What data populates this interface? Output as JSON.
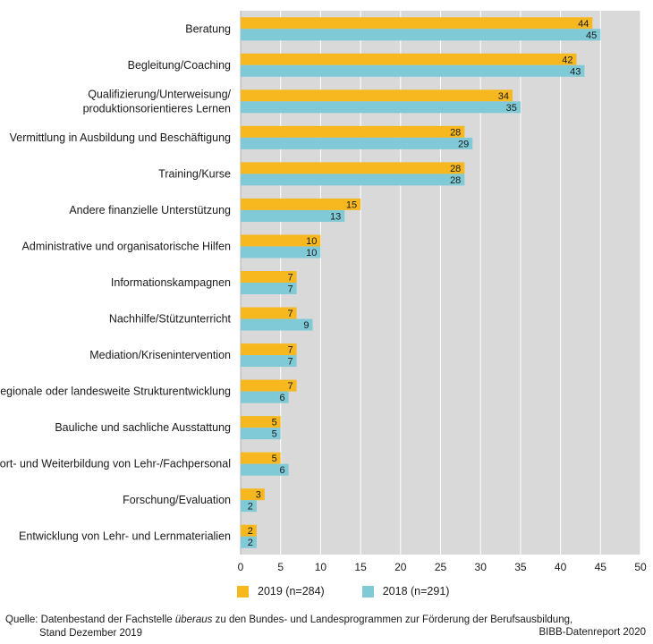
{
  "chart_data": {
    "type": "bar",
    "orientation": "horizontal",
    "categories": [
      [
        "Beratung"
      ],
      [
        "Begleitung/Coaching"
      ],
      [
        "Qualifizierung/Unterweisung/",
        "produktionsorientieres Lernen"
      ],
      [
        "Vermittlung in Ausbildung und Beschäftigung"
      ],
      [
        "Training/Kurse"
      ],
      [
        "Andere finanzielle Unterstützung"
      ],
      [
        "Administrative und organisatorische Hilfen"
      ],
      [
        "Informationskampagnen"
      ],
      [
        "Nachhilfe/Stützunterricht"
      ],
      [
        "Mediation/Krisenintervention"
      ],
      [
        "Regionale oder landesweite Strukturentwicklung"
      ],
      [
        "Bauliche und sachliche Ausstattung"
      ],
      [
        "Fort- und Weiterbildung von Lehr-/Fachpersonal"
      ],
      [
        "Forschung/Evaluation"
      ],
      [
        "Entwicklung von Lehr- und Lernmaterialien"
      ]
    ],
    "series": [
      {
        "name": "2019 (n=284)",
        "color": "#f7b71e",
        "values": [
          44,
          42,
          34,
          28,
          28,
          15,
          10,
          7,
          7,
          7,
          7,
          5,
          5,
          3,
          2
        ]
      },
      {
        "name": "2018 (n=291)",
        "color": "#7fcad6",
        "values": [
          45,
          43,
          35,
          29,
          28,
          13,
          10,
          7,
          9,
          7,
          6,
          5,
          6,
          2,
          2
        ]
      }
    ],
    "xlim": [
      0,
      50
    ],
    "xticks": [
      0,
      5,
      10,
      15,
      20,
      25,
      30,
      35,
      40,
      45,
      50
    ],
    "grid": true,
    "plot_background": "#d9d9d9"
  },
  "source": {
    "prefix": "Quelle:",
    "line1_a": "Datenbestand der Fachstelle ",
    "line1_italic": "überaus",
    "line1_b": " zu den Bundes- und Landesprogrammen zur Förderung der Berufsausbildung,",
    "line2": "Stand Dezember 2019"
  },
  "credit": "BIBB-Datenreport 2020"
}
